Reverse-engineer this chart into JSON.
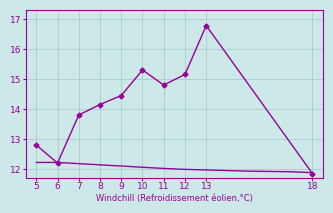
{
  "line1_x": [
    5,
    6,
    7,
    8,
    9,
    10,
    11,
    12,
    13,
    18
  ],
  "line1_y": [
    12.8,
    12.2,
    13.8,
    14.15,
    14.45,
    15.3,
    14.8,
    15.15,
    16.78,
    11.85
  ],
  "line2_x": [
    5,
    6,
    7,
    8,
    9,
    10,
    11,
    12,
    13,
    14,
    15,
    16,
    17,
    18
  ],
  "line2_y": [
    12.22,
    12.22,
    12.18,
    12.14,
    12.1,
    12.06,
    12.02,
    11.99,
    11.97,
    11.95,
    11.93,
    11.92,
    11.91,
    11.88
  ],
  "line_color": "#990099",
  "marker": "D",
  "marker_size": 2.5,
  "xlabel": "Windchill (Refroidissement éolien,°C)",
  "xlim": [
    4.5,
    18.5
  ],
  "ylim": [
    11.7,
    17.3
  ],
  "xticks": [
    5,
    6,
    7,
    8,
    9,
    10,
    11,
    12,
    13,
    18
  ],
  "yticks": [
    12,
    13,
    14,
    15,
    16,
    17
  ],
  "bg_color": "#cce8e8",
  "grid_color": "#aacccc",
  "line_width": 1.0,
  "tick_fontsize": 6.5
}
